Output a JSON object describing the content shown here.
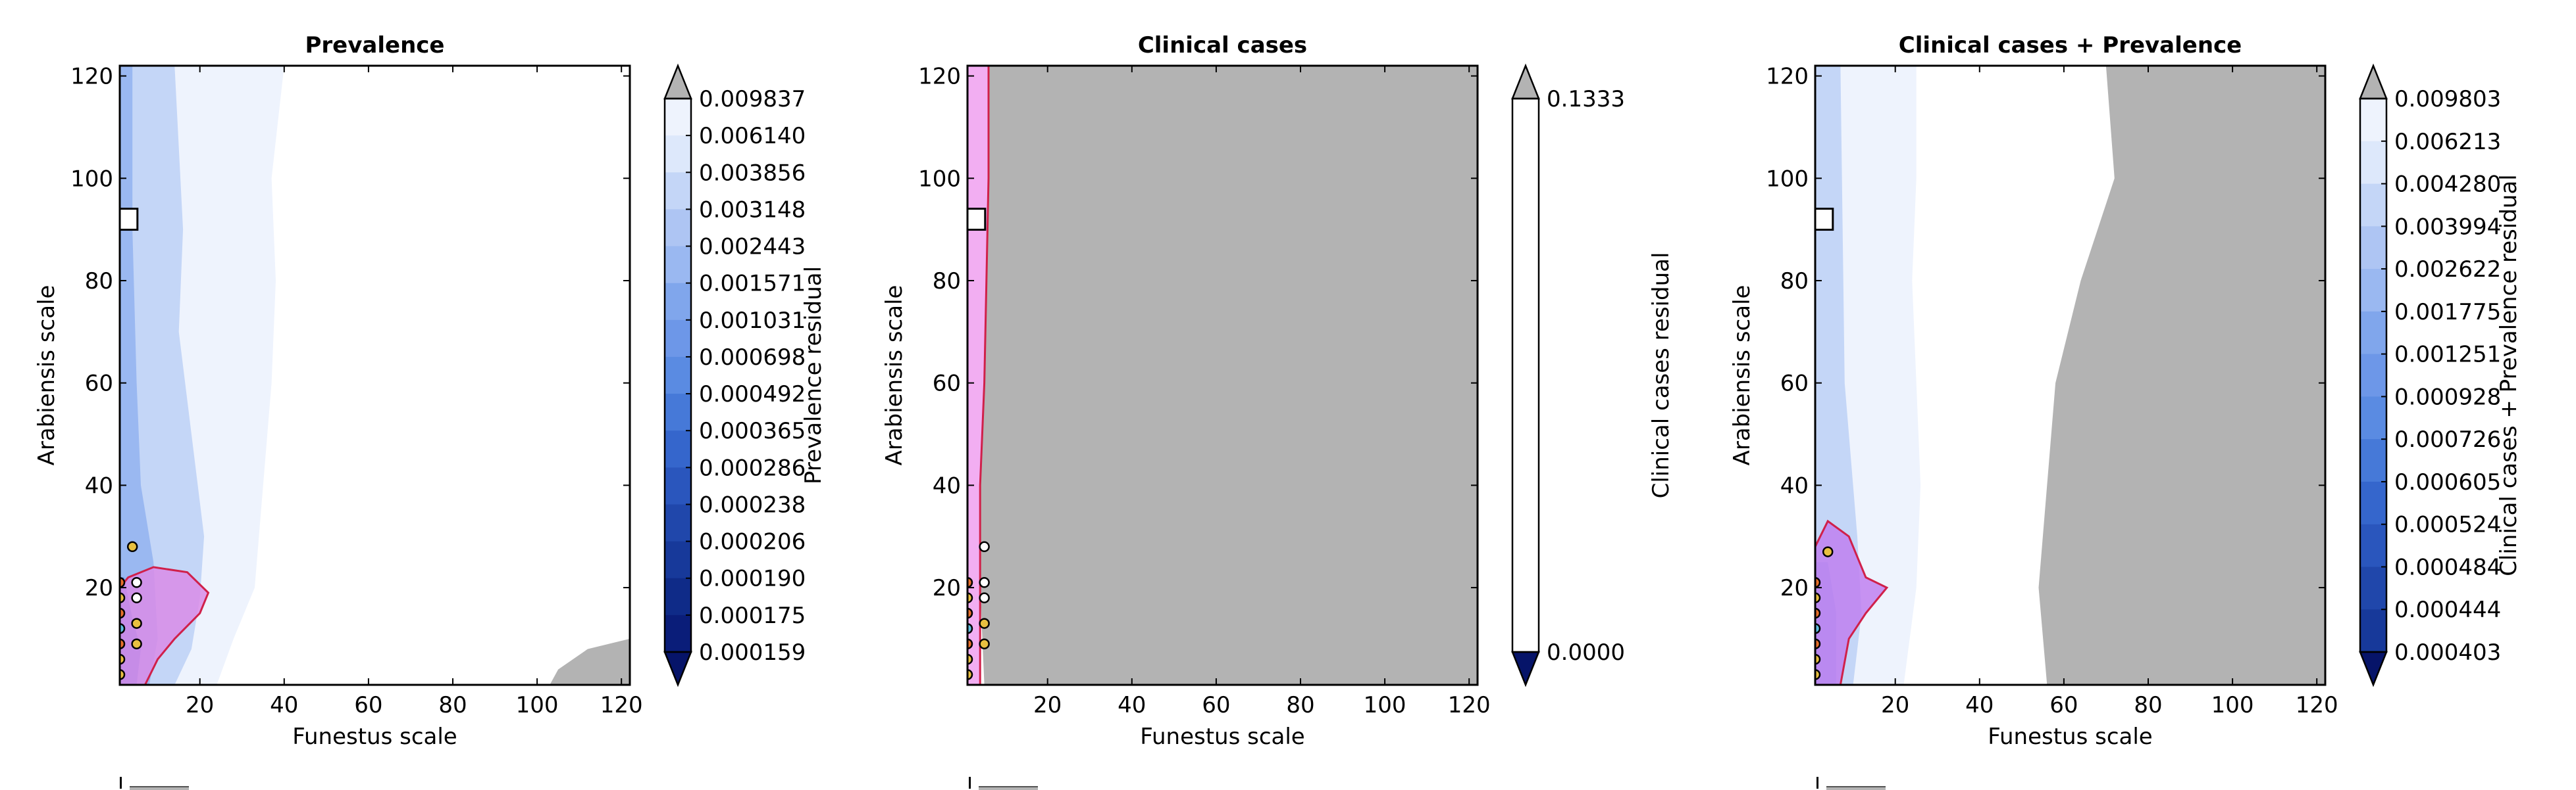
{
  "chart_data": [
    {
      "type": "heatmap",
      "subtype": "filled-contour",
      "title": "Prevalence",
      "xlabel": "Funestus scale",
      "ylabel": "Arabiensis scale",
      "xlim": [
        1,
        122
      ],
      "ylim": [
        1,
        122
      ],
      "xticks": [
        20,
        40,
        60,
        80,
        100,
        120
      ],
      "yticks": [
        20,
        40,
        60,
        80,
        100,
        120
      ],
      "colorbar": {
        "label": "Prevalence residual",
        "ticks": [
          "0.009837",
          "0.006140",
          "0.003856",
          "0.003148",
          "0.002443",
          "0.001571",
          "0.001031",
          "0.000698",
          "0.000492",
          "0.000365",
          "0.000286",
          "0.000238",
          "0.000206",
          "0.000190",
          "0.000175",
          "0.000159"
        ],
        "colormap": "Blues_r",
        "over_color": "#b3b3b3",
        "extend": "both"
      },
      "contours": [
        {
          "level": 0.009837,
          "color": "#b3b3b3",
          "region": [
            [
              105,
              4
            ],
            [
              112,
              8
            ],
            [
              122,
              10
            ],
            [
              122,
              1
            ],
            [
              103,
              1
            ]
          ]
        },
        {
          "level": 0.00614,
          "color": "#eef3fd",
          "region": [
            [
              1,
              1
            ],
            [
              24,
              1
            ],
            [
              28,
              10
            ],
            [
              33,
              20
            ],
            [
              35,
              40
            ],
            [
              37,
              60
            ],
            [
              38,
              80
            ],
            [
              37,
              100
            ],
            [
              40,
              122
            ],
            [
              1,
              122
            ]
          ]
        },
        {
          "level": 0.003148,
          "color": "#c4d6f7",
          "region": [
            [
              1,
              1
            ],
            [
              14,
              1
            ],
            [
              18,
              8
            ],
            [
              20,
              18
            ],
            [
              21,
              30
            ],
            [
              18,
              50
            ],
            [
              15,
              70
            ],
            [
              16,
              90
            ],
            [
              14,
              122
            ],
            [
              1,
              122
            ]
          ]
        },
        {
          "level": 0.001571,
          "color": "#9ab8f1",
          "region": [
            [
              1,
              1
            ],
            [
              8,
              1
            ],
            [
              10,
              10
            ],
            [
              9,
              25
            ],
            [
              6,
              40
            ],
            [
              5,
              60
            ],
            [
              4,
              90
            ],
            [
              4,
              122
            ],
            [
              1,
              122
            ]
          ]
        },
        {
          "level": 0.000492,
          "color": "#5a8be2",
          "region": [
            [
              1,
              1
            ],
            [
              5,
              1
            ],
            [
              6,
              8
            ],
            [
              4,
              14
            ],
            [
              2,
              22
            ],
            [
              1,
              22
            ]
          ]
        }
      ],
      "highlight_region": {
        "color": "#d98ce8",
        "border": "#d0204a",
        "points": [
          [
            1,
            1
          ],
          [
            7,
            1
          ],
          [
            10,
            6
          ],
          [
            14,
            10
          ],
          [
            20,
            15
          ],
          [
            22,
            19
          ],
          [
            17,
            23
          ],
          [
            9,
            24
          ],
          [
            3,
            22
          ],
          [
            1,
            20
          ]
        ]
      },
      "markers": [
        {
          "x": 1,
          "y": 21,
          "color": "#e8702a"
        },
        {
          "x": 1,
          "y": 18,
          "color": "#e8c040"
        },
        {
          "x": 1,
          "y": 15,
          "color": "#e8702a"
        },
        {
          "x": 1,
          "y": 12,
          "color": "#60c0e0"
        },
        {
          "x": 1,
          "y": 9,
          "color": "#e8702a"
        },
        {
          "x": 1,
          "y": 6,
          "color": "#e8c040"
        },
        {
          "x": 1,
          "y": 3,
          "color": "#e8c040"
        },
        {
          "x": 5,
          "y": 21,
          "color": "#ffffff"
        },
        {
          "x": 5,
          "y": 18,
          "color": "#ffffff"
        },
        {
          "x": 5,
          "y": 13,
          "color": "#e8c040"
        },
        {
          "x": 5,
          "y": 9,
          "color": "#e8c040"
        },
        {
          "x": 4,
          "y": 28,
          "color": "#e8c040"
        }
      ],
      "square_marker": {
        "x": 3,
        "y": 92
      }
    },
    {
      "type": "heatmap",
      "subtype": "filled-contour",
      "title": "Clinical cases",
      "xlabel": "Funestus scale",
      "ylabel": "Arabiensis scale",
      "xlim": [
        1,
        122
      ],
      "ylim": [
        1,
        122
      ],
      "xticks": [
        20,
        40,
        60,
        80,
        100,
        120
      ],
      "yticks": [
        20,
        40,
        60,
        80,
        100,
        120
      ],
      "colorbar": {
        "label": "Clinical cases residual",
        "ticks": [
          "0.1333",
          "0.0000"
        ],
        "colormap": "Blues_r",
        "over_color": "#b3b3b3",
        "extend": "both"
      },
      "contours": [
        {
          "level": 0.1333,
          "color": "#b3b3b3",
          "region": [
            [
              5,
              1
            ],
            [
              122,
              1
            ],
            [
              122,
              122
            ],
            [
              6,
              122
            ],
            [
              6,
              100
            ],
            [
              5,
              60
            ],
            [
              4,
              40
            ],
            [
              4,
              20
            ]
          ]
        }
      ],
      "highlight_region": {
        "color": "#f0a0f0",
        "border": "#d0204a",
        "points": [
          [
            1,
            1
          ],
          [
            4,
            1
          ],
          [
            4,
            20
          ],
          [
            4,
            40
          ],
          [
            5,
            60
          ],
          [
            6,
            100
          ],
          [
            6,
            122
          ],
          [
            1,
            122
          ]
        ]
      },
      "markers": [
        {
          "x": 1,
          "y": 21,
          "color": "#e8702a"
        },
        {
          "x": 1,
          "y": 18,
          "color": "#e8c040"
        },
        {
          "x": 1,
          "y": 15,
          "color": "#e8702a"
        },
        {
          "x": 1,
          "y": 12,
          "color": "#60c0e0"
        },
        {
          "x": 1,
          "y": 9,
          "color": "#e8702a"
        },
        {
          "x": 1,
          "y": 6,
          "color": "#e8c040"
        },
        {
          "x": 1,
          "y": 3,
          "color": "#e8c040"
        },
        {
          "x": 5,
          "y": 21,
          "color": "#ffffff"
        },
        {
          "x": 5,
          "y": 18,
          "color": "#ffffff"
        },
        {
          "x": 5,
          "y": 13,
          "color": "#e8c040"
        },
        {
          "x": 5,
          "y": 9,
          "color": "#e8c040"
        },
        {
          "x": 5,
          "y": 28,
          "color": "#ffffff"
        }
      ],
      "square_marker": {
        "x": 3,
        "y": 92
      }
    },
    {
      "type": "heatmap",
      "subtype": "filled-contour",
      "title": "Clinical cases + Prevalence",
      "xlabel": "Funestus scale",
      "ylabel": "Arabiensis scale",
      "xlim": [
        1,
        122
      ],
      "ylim": [
        1,
        122
      ],
      "xticks": [
        20,
        40,
        60,
        80,
        100,
        120
      ],
      "yticks": [
        20,
        40,
        60,
        80,
        100,
        120
      ],
      "colorbar": {
        "label": "Clinical cases + Prevalence residual",
        "ticks": [
          "0.009803",
          "0.006213",
          "0.004280",
          "0.003994",
          "0.002622",
          "0.001775",
          "0.001251",
          "0.000928",
          "0.000726",
          "0.000605",
          "0.000524",
          "0.000484",
          "0.000444",
          "0.000403"
        ],
        "colormap": "Blues_r",
        "over_color": "#b3b3b3",
        "extend": "both"
      },
      "contours": [
        {
          "level": 0.009803,
          "color": "#b3b3b3",
          "region": [
            [
              56,
              1
            ],
            [
              122,
              1
            ],
            [
              122,
              122
            ],
            [
              70,
              122
            ],
            [
              72,
              100
            ],
            [
              64,
              80
            ],
            [
              58,
              60
            ],
            [
              56,
              40
            ],
            [
              54,
              20
            ]
          ]
        },
        {
          "level": 0.006213,
          "color": "#eef3fd",
          "region": [
            [
              1,
              1
            ],
            [
              22,
              1
            ],
            [
              25,
              20
            ],
            [
              26,
              40
            ],
            [
              25,
              60
            ],
            [
              24,
              80
            ],
            [
              25,
              100
            ],
            [
              25,
              122
            ],
            [
              1,
              122
            ]
          ]
        },
        {
          "level": 0.003994,
          "color": "#c4d6f7",
          "region": [
            [
              1,
              1
            ],
            [
              10,
              1
            ],
            [
              12,
              15
            ],
            [
              11,
              30
            ],
            [
              8,
              60
            ],
            [
              7,
              122
            ],
            [
              1,
              122
            ]
          ]
        },
        {
          "level": 0.001775,
          "color": "#9ab8f1",
          "region": [
            [
              1,
              1
            ],
            [
              6,
              1
            ],
            [
              6,
              15
            ],
            [
              4,
              25
            ],
            [
              1,
              25
            ]
          ]
        }
      ],
      "highlight_region": {
        "color": "#c080f0",
        "border": "#d0204a",
        "points": [
          [
            1,
            1
          ],
          [
            7,
            1
          ],
          [
            9,
            10
          ],
          [
            13,
            15
          ],
          [
            18,
            20
          ],
          [
            13,
            22
          ],
          [
            9,
            30
          ],
          [
            4,
            33
          ],
          [
            1,
            28
          ]
        ]
      },
      "markers": [
        {
          "x": 1,
          "y": 21,
          "color": "#e8702a"
        },
        {
          "x": 1,
          "y": 18,
          "color": "#e8c040"
        },
        {
          "x": 1,
          "y": 15,
          "color": "#e8702a"
        },
        {
          "x": 1,
          "y": 12,
          "color": "#60c0e0"
        },
        {
          "x": 1,
          "y": 9,
          "color": "#e8702a"
        },
        {
          "x": 1,
          "y": 6,
          "color": "#e8c040"
        },
        {
          "x": 1,
          "y": 3,
          "color": "#e8c040"
        },
        {
          "x": 4,
          "y": 27,
          "color": "#e8c040"
        }
      ],
      "square_marker": {
        "x": 3,
        "y": 92
      }
    }
  ]
}
